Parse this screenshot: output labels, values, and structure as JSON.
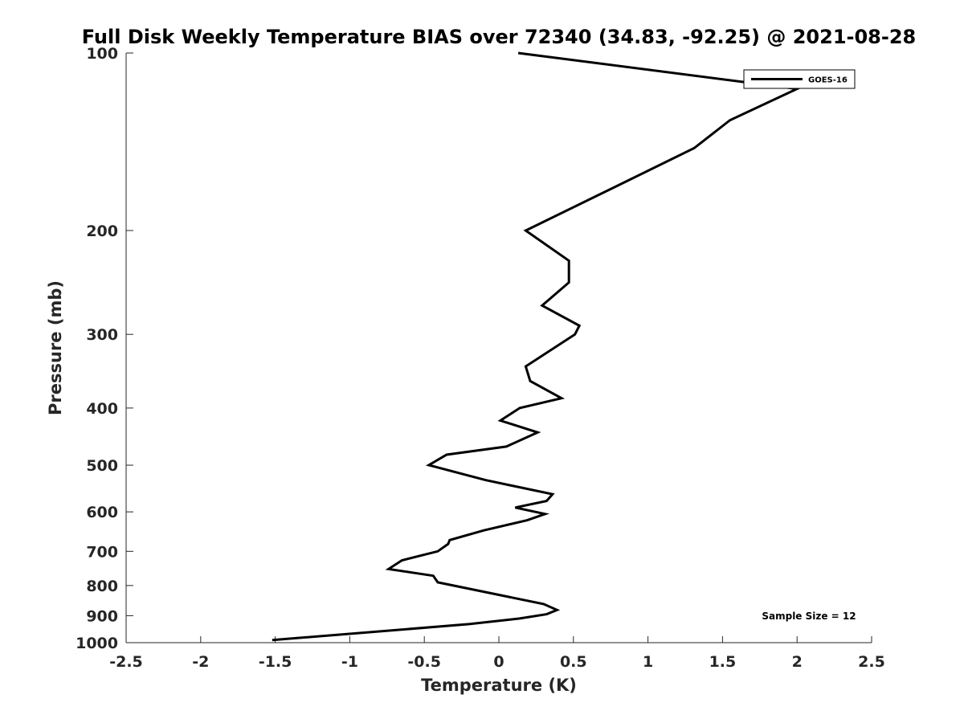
{
  "chart_data": {
    "type": "line",
    "title": "Full Disk Weekly Temperature BIAS over 72340 (34.83, -92.25) @ 2021-08-28",
    "xlabel": "Temperature (K)",
    "ylabel": "Pressure (mb)",
    "xlim": [
      -2.5,
      2.5
    ],
    "ylim": [
      1000,
      100
    ],
    "y_scale": "log",
    "y_reversed": true,
    "grid": false,
    "legend_position": "top-right",
    "x_ticks": [
      "-2.5",
      "-2",
      "-1.5",
      "-1",
      "-0.5",
      "0",
      "0.5",
      "1",
      "1.5",
      "2",
      "2.5"
    ],
    "y_ticks": [
      "100",
      "200",
      "300",
      "400",
      "500",
      "600",
      "700",
      "800",
      "900",
      "1000"
    ],
    "series": [
      {
        "name": "GOES-16",
        "color": "#000000",
        "x": [
          0.13,
          2.0,
          1.55,
          1.31,
          0.65,
          0.18,
          0.47,
          0.47,
          0.29,
          0.54,
          0.51,
          0.18,
          0.21,
          0.42,
          0.14,
          0.01,
          0.26,
          0.05,
          -0.35,
          -0.47,
          -0.09,
          0.36,
          0.32,
          0.11,
          0.31,
          0.19,
          -0.1,
          -0.33,
          -0.34,
          -0.41,
          -0.65,
          -0.74,
          -0.44,
          -0.41,
          0.3,
          0.39,
          0.32,
          0.14,
          -0.2,
          -1.52
        ],
        "y": [
          100,
          115,
          130,
          145,
          175,
          200,
          225,
          245,
          268,
          290,
          300,
          340,
          360,
          385,
          400,
          420,
          440,
          465,
          480,
          500,
          530,
          560,
          575,
          590,
          605,
          620,
          645,
          670,
          680,
          700,
          725,
          750,
          770,
          790,
          860,
          880,
          895,
          910,
          930,
          990
        ]
      }
    ],
    "annotations": [
      "Sample Size = 12"
    ]
  }
}
